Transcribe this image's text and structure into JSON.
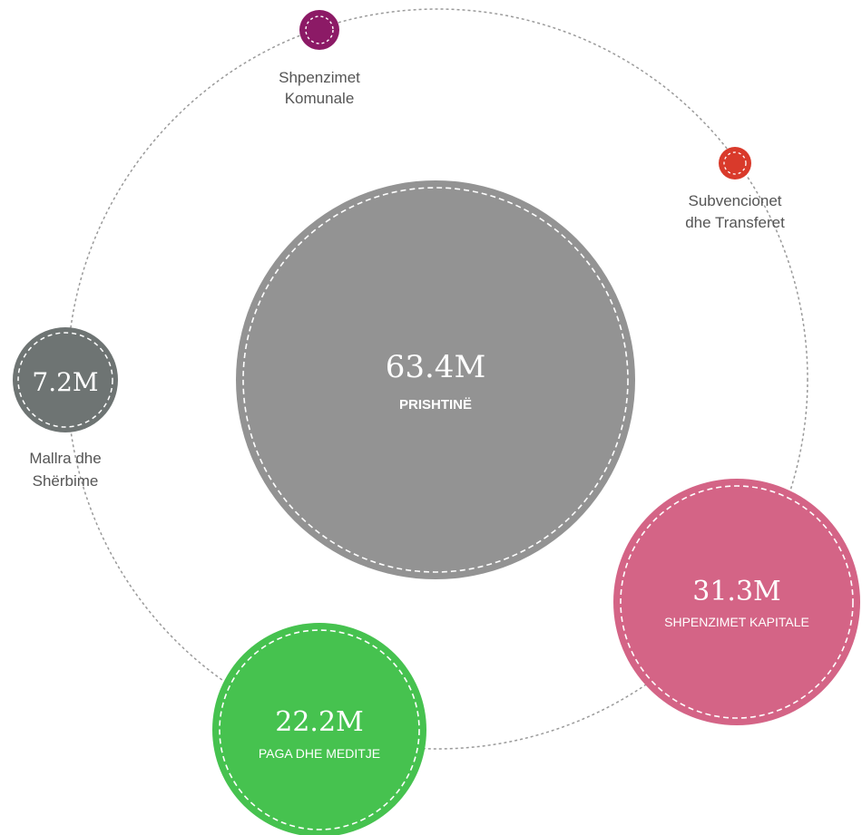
{
  "center": {
    "value": "63.4M",
    "label": "PRISHTINË",
    "color": "#939393"
  },
  "nodes": [
    {
      "key": "shpenzimet_komunale",
      "value": "",
      "label_lines": [
        "Shpenzimet",
        "Komunale"
      ],
      "color": "#8c1a66"
    },
    {
      "key": "subvencionet",
      "value": "",
      "label_lines": [
        "Subvencionet",
        "dhe Transferet"
      ],
      "color": "#d93a2b"
    },
    {
      "key": "mallra",
      "value": "7.2M",
      "label_lines": [
        "Mallra dhe",
        "Shërbime"
      ],
      "color": "#6e7473"
    },
    {
      "key": "kapitale",
      "value": "31.3M",
      "label": "SHPENZIMET KAPITALE",
      "color": "#d46486"
    },
    {
      "key": "paga",
      "value": "22.2M",
      "label": "PAGA DHE MEDITJE",
      "color": "#46c24f"
    }
  ],
  "orbit_color": "#9a9a9a"
}
